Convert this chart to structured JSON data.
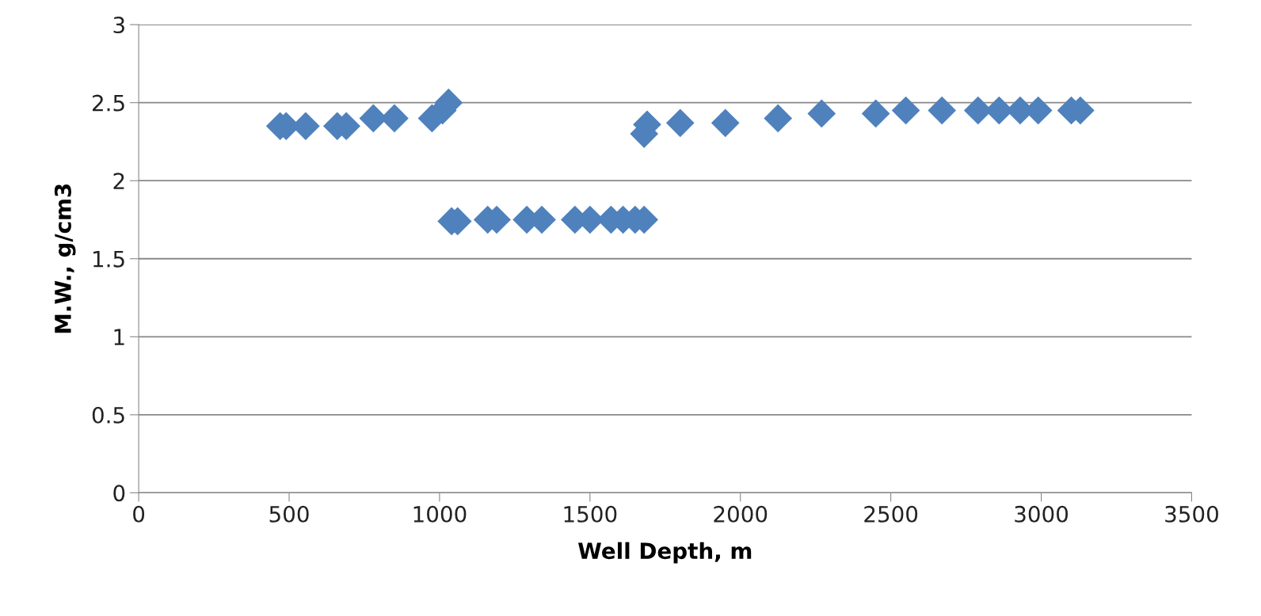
{
  "chart_data": {
    "type": "scatter",
    "xlabel": "Well Depth, m",
    "ylabel": "M.W., g/cm3",
    "x": [
      470,
      490,
      555,
      660,
      690,
      780,
      850,
      975,
      1010,
      1030,
      1040,
      1060,
      1160,
      1190,
      1290,
      1340,
      1450,
      1500,
      1570,
      1610,
      1650,
      1680,
      1680,
      1690,
      1800,
      1950,
      2125,
      2270,
      2450,
      2550,
      2670,
      2790,
      2860,
      2930,
      2990,
      3100,
      3130
    ],
    "values": [
      2.35,
      2.35,
      2.35,
      2.35,
      2.35,
      2.4,
      2.4,
      2.4,
      2.45,
      2.5,
      1.74,
      1.74,
      1.75,
      1.75,
      1.75,
      1.75,
      1.75,
      1.75,
      1.75,
      1.75,
      1.75,
      1.75,
      2.3,
      2.36,
      2.37,
      2.37,
      2.4,
      2.43,
      2.43,
      2.45,
      2.45,
      2.45,
      2.45,
      2.45,
      2.45,
      2.45,
      2.45
    ],
    "color": "#4f81bd",
    "marker": "diamond",
    "grid": "y",
    "xlim": [
      0,
      3500
    ],
    "xticks": [
      0,
      500,
      1000,
      1500,
      2000,
      2500,
      3000,
      3500
    ],
    "ylim": [
      0,
      3
    ],
    "yticks": [
      0,
      0.5,
      1,
      1.5,
      2,
      2.5,
      3
    ]
  }
}
